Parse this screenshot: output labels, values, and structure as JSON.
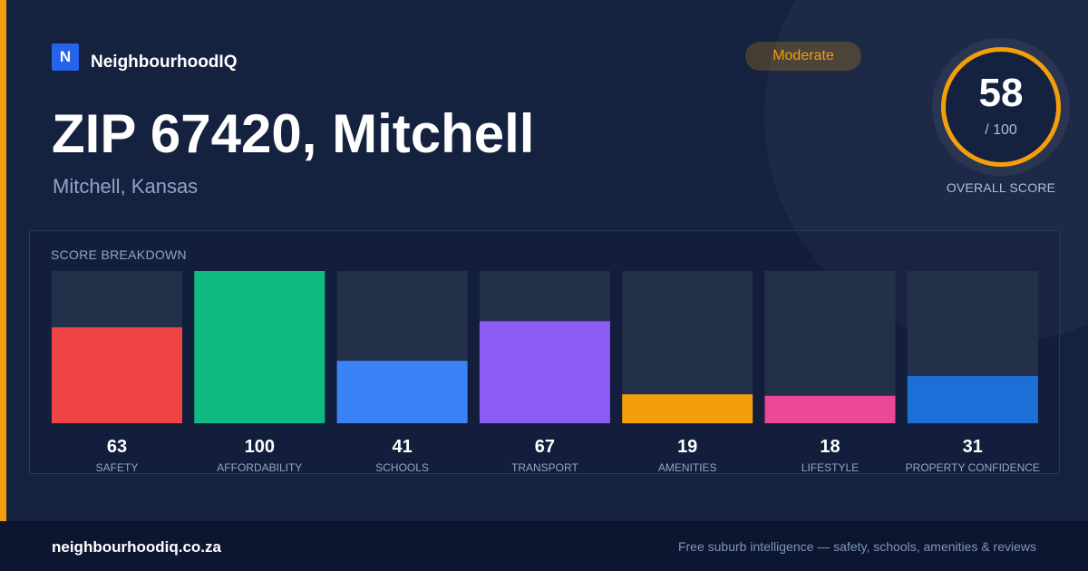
{
  "brand": {
    "logo_letter": "N",
    "name": "NeighbourhoodIQ"
  },
  "badge": {
    "label": "Moderate"
  },
  "header": {
    "title": "ZIP 67420, Mitchell",
    "subtitle": "Mitchell, Kansas"
  },
  "overall": {
    "score": "58",
    "max": "/ 100",
    "label": "OVERALL SCORE"
  },
  "breakdown": {
    "title": "SCORE BREAKDOWN"
  },
  "chart_data": {
    "type": "bar",
    "categories": [
      "SAFETY",
      "AFFORDABILITY",
      "SCHOOLS",
      "TRANSPORT",
      "AMENITIES",
      "LIFESTYLE",
      "PROPERTY CONFIDENCE"
    ],
    "values": [
      63,
      100,
      41,
      67,
      19,
      18,
      31
    ],
    "colors": [
      "#ef4444",
      "#10b981",
      "#3b82f6",
      "#8b5cf6",
      "#f59e0b",
      "#ec4899",
      "#1d6fd8"
    ],
    "ylim": [
      0,
      100
    ],
    "grid": false,
    "legend": "none"
  },
  "footer": {
    "site": "neighbourhoodiq.co.za",
    "tagline": "Free suburb intelligence — safety, schools, amenities & reviews"
  },
  "colors": {
    "accent": "#f59e0b",
    "background": "#142240",
    "brand": "#2563eb"
  }
}
